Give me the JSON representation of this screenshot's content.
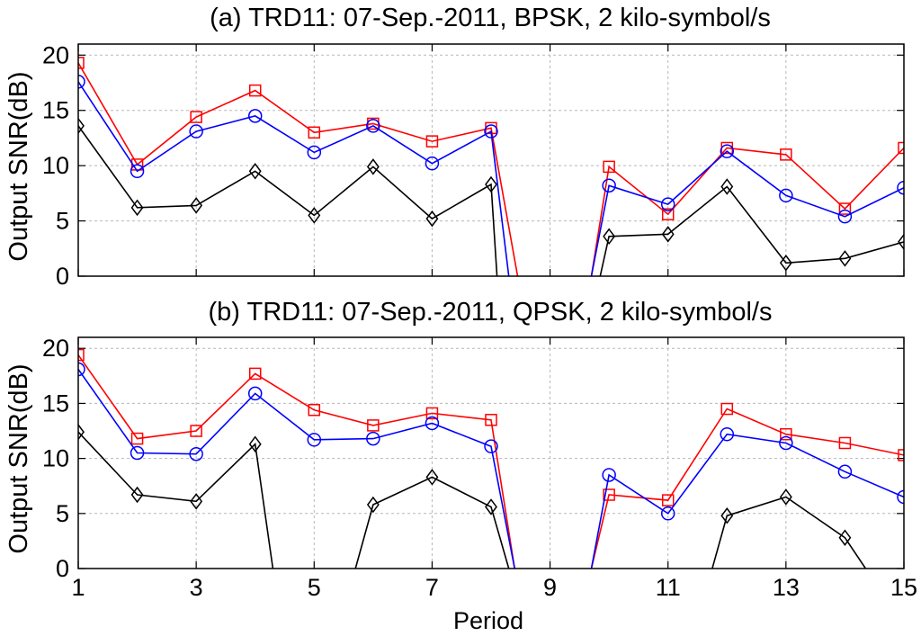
{
  "chart_data": [
    {
      "type": "line",
      "title": "(a) TRD11: 07-Sep.-2011, BPSK, 2 kilo-symbol/s",
      "xlabel": "",
      "ylabel": "Output SNR(dB)",
      "xlim": [
        1,
        15
      ],
      "ylim": [
        0,
        21
      ],
      "xticks": [
        1,
        3,
        5,
        7,
        9,
        11,
        13,
        15
      ],
      "yticks": [
        0,
        5,
        10,
        15,
        20
      ],
      "grid": true,
      "series": [
        {
          "name": "red-square",
          "color": "#ff0000",
          "marker": "square",
          "segments": [
            [
              [
                1,
                19.3
              ],
              [
                2,
                10.1
              ],
              [
                3,
                14.4
              ],
              [
                4,
                16.8
              ],
              [
                5,
                13.0
              ],
              [
                6,
                13.8
              ],
              [
                7,
                12.2
              ],
              [
                8,
                13.4
              ],
              [
                8.45,
                0
              ]
            ],
            [
              [
                9.7,
                0
              ],
              [
                10,
                9.9
              ],
              [
                11,
                5.6
              ],
              [
                12,
                11.6
              ],
              [
                13,
                11.0
              ],
              [
                14,
                6.1
              ],
              [
                15,
                11.6
              ]
            ]
          ]
        },
        {
          "name": "blue-circle",
          "color": "#0000ff",
          "marker": "circle",
          "segments": [
            [
              [
                1,
                17.6
              ],
              [
                2,
                9.5
              ],
              [
                3,
                13.1
              ],
              [
                4,
                14.5
              ],
              [
                5,
                11.2
              ],
              [
                6,
                13.6
              ],
              [
                7,
                10.2
              ],
              [
                8,
                13.1
              ],
              [
                8.3,
                0
              ]
            ],
            [
              [
                9.7,
                0
              ],
              [
                10,
                8.2
              ],
              [
                11,
                6.5
              ],
              [
                12,
                11.3
              ],
              [
                13,
                7.3
              ],
              [
                14,
                5.4
              ],
              [
                15,
                8.0
              ]
            ]
          ]
        },
        {
          "name": "black-diamond",
          "color": "#000000",
          "marker": "diamond",
          "segments": [
            [
              [
                1,
                13.6
              ],
              [
                2,
                6.2
              ],
              [
                3,
                6.4
              ],
              [
                4,
                9.5
              ],
              [
                5,
                5.5
              ],
              [
                6,
                9.9
              ],
              [
                7,
                5.2
              ],
              [
                8,
                8.3
              ],
              [
                8.1,
                0
              ]
            ],
            [
              [
                9.85,
                0
              ],
              [
                10,
                3.6
              ],
              [
                11,
                3.8
              ],
              [
                12,
                8.1
              ],
              [
                13,
                1.2
              ],
              [
                14,
                1.6
              ],
              [
                15,
                3.1
              ]
            ]
          ]
        }
      ]
    },
    {
      "type": "line",
      "title": "(b) TRD11: 07-Sep.-2011, QPSK, 2 kilo-symbol/s",
      "xlabel": "Period",
      "ylabel": "Output SNR(dB)",
      "xlim": [
        1,
        15
      ],
      "ylim": [
        0,
        21
      ],
      "xticks": [
        1,
        3,
        5,
        7,
        9,
        11,
        13,
        15
      ],
      "yticks": [
        0,
        5,
        10,
        15,
        20
      ],
      "grid": true,
      "series": [
        {
          "name": "red-square",
          "color": "#ff0000",
          "marker": "square",
          "segments": [
            [
              [
                1,
                19.4
              ],
              [
                2,
                11.8
              ],
              [
                3,
                12.5
              ],
              [
                4,
                17.7
              ],
              [
                5,
                14.4
              ],
              [
                6,
                13.0
              ],
              [
                7,
                14.1
              ],
              [
                8,
                13.5
              ],
              [
                8.4,
                0
              ]
            ],
            [
              [
                9.7,
                0
              ],
              [
                10,
                6.7
              ],
              [
                11,
                6.2
              ],
              [
                12,
                14.5
              ],
              [
                13,
                12.2
              ],
              [
                14,
                11.4
              ],
              [
                15,
                10.3
              ]
            ]
          ]
        },
        {
          "name": "blue-circle",
          "color": "#0000ff",
          "marker": "circle",
          "segments": [
            [
              [
                1,
                18.1
              ],
              [
                2,
                10.5
              ],
              [
                3,
                10.4
              ],
              [
                4,
                15.9
              ],
              [
                5,
                11.7
              ],
              [
                6,
                11.8
              ],
              [
                7,
                13.2
              ],
              [
                8,
                11.1
              ],
              [
                8.4,
                0
              ]
            ],
            [
              [
                9.7,
                0
              ],
              [
                10,
                8.5
              ],
              [
                11,
                5.0
              ],
              [
                12,
                12.2
              ],
              [
                13,
                11.4
              ],
              [
                14,
                8.8
              ],
              [
                15,
                6.5
              ]
            ]
          ]
        },
        {
          "name": "black-diamond",
          "color": "#000000",
          "marker": "diamond",
          "segments": [
            [
              [
                1,
                12.4
              ],
              [
                2,
                6.7
              ],
              [
                3,
                6.1
              ],
              [
                4,
                11.3
              ],
              [
                4.3,
                0
              ]
            ],
            [
              [
                5.7,
                0
              ],
              [
                6,
                5.8
              ],
              [
                7,
                8.3
              ],
              [
                8,
                5.6
              ],
              [
                8.3,
                0
              ]
            ],
            [
              [
                11.75,
                0
              ],
              [
                12,
                4.8
              ],
              [
                13,
                6.5
              ],
              [
                14,
                2.8
              ],
              [
                14.35,
                0
              ]
            ]
          ]
        }
      ]
    }
  ]
}
